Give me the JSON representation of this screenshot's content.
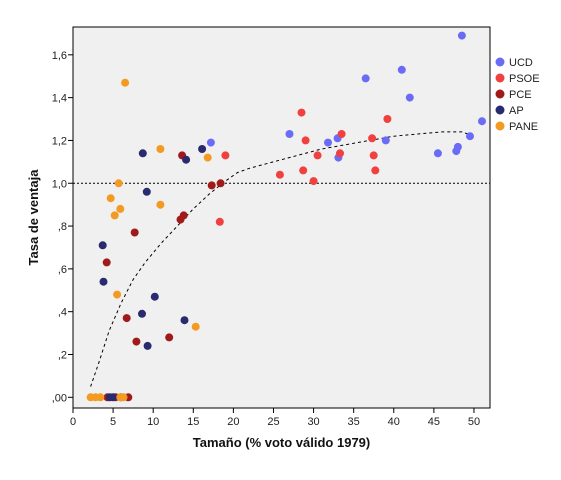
{
  "chart_data": {
    "type": "scatter",
    "xlabel": "Tamaño (% voto válido 1979)",
    "ylabel": "Tasa de ventaja",
    "xlim": [
      0,
      52
    ],
    "ylim": [
      -0.05,
      1.73
    ],
    "x_ticks": [
      0,
      5,
      10,
      15,
      20,
      25,
      30,
      35,
      40,
      45,
      50
    ],
    "x_tick_labels": [
      "0",
      "5",
      "10",
      "15",
      "20",
      "25",
      "30",
      "35",
      "40",
      "45",
      "50"
    ],
    "y_ticks": [
      0,
      0.2,
      0.4,
      0.6,
      0.8,
      1.0,
      1.2,
      1.4,
      1.6
    ],
    "y_tick_labels": [
      ",00",
      ",2",
      ",4",
      ",6",
      ",8",
      "1,0",
      "1,2",
      "1,4",
      "1,6"
    ],
    "grid": false,
    "legend_position": "right",
    "reference_line": {
      "y": 1.0,
      "style": "dotted"
    },
    "trend_line": {
      "style": "dashed",
      "points": [
        [
          2.2,
          0.05
        ],
        [
          3.2,
          0.16
        ],
        [
          4.5,
          0.31
        ],
        [
          6,
          0.44
        ],
        [
          7.5,
          0.55
        ],
        [
          9,
          0.63
        ],
        [
          11,
          0.72
        ],
        [
          13,
          0.8
        ],
        [
          15,
          0.88
        ],
        [
          17,
          0.95
        ],
        [
          19,
          1.01
        ],
        [
          20.5,
          1.05
        ],
        [
          22,
          1.07
        ],
        [
          25,
          1.1
        ],
        [
          28,
          1.13
        ],
        [
          31,
          1.16
        ],
        [
          34,
          1.18
        ],
        [
          37,
          1.2
        ],
        [
          40,
          1.22
        ],
        [
          43,
          1.23
        ],
        [
          46,
          1.24
        ],
        [
          48.5,
          1.24
        ],
        [
          50,
          1.22
        ]
      ]
    },
    "series": [
      {
        "name": "UCD",
        "color": "#6b6cf6",
        "points": [
          [
            48.5,
            1.69
          ],
          [
            51,
            1.29
          ],
          [
            49.5,
            1.22
          ],
          [
            48,
            1.17
          ],
          [
            47.8,
            1.15
          ],
          [
            45.5,
            1.14
          ],
          [
            42,
            1.4
          ],
          [
            41,
            1.53
          ],
          [
            39,
            1.2
          ],
          [
            36.5,
            1.49
          ],
          [
            33,
            1.21
          ],
          [
            33.1,
            1.12
          ],
          [
            31.8,
            1.19
          ],
          [
            27,
            1.23
          ],
          [
            17.2,
            1.19
          ]
        ]
      },
      {
        "name": "PSOE",
        "color": "#f04040",
        "points": [
          [
            39.2,
            1.3
          ],
          [
            37.3,
            1.21
          ],
          [
            37.5,
            1.13
          ],
          [
            37.7,
            1.06
          ],
          [
            33.5,
            1.23
          ],
          [
            33.3,
            1.14
          ],
          [
            30.5,
            1.13
          ],
          [
            30,
            1.01
          ],
          [
            29,
            1.2
          ],
          [
            28.5,
            1.33
          ],
          [
            28.7,
            1.06
          ],
          [
            25.8,
            1.04
          ],
          [
            19,
            1.13
          ],
          [
            18.3,
            0.82
          ]
        ]
      },
      {
        "name": "PCE",
        "color": "#a01a1a",
        "points": [
          [
            18.4,
            1.0
          ],
          [
            17.3,
            0.99
          ],
          [
            13.6,
            1.13
          ],
          [
            13.4,
            0.83
          ],
          [
            13.8,
            0.85
          ],
          [
            12,
            0.28
          ],
          [
            7.7,
            0.77
          ],
          [
            7.9,
            0.26
          ],
          [
            6.7,
            0.37
          ],
          [
            4.2,
            0.63
          ],
          [
            4.3,
            0.0
          ],
          [
            5.3,
            0.0
          ],
          [
            6.9,
            0.0
          ]
        ]
      },
      {
        "name": "AP",
        "color": "#2a2a6e",
        "points": [
          [
            16.1,
            1.16
          ],
          [
            14.1,
            1.11
          ],
          [
            8.7,
            1.14
          ],
          [
            9.2,
            0.96
          ],
          [
            10.2,
            0.47
          ],
          [
            8.6,
            0.39
          ],
          [
            9.3,
            0.24
          ],
          [
            13.9,
            0.36
          ],
          [
            3.7,
            0.71
          ],
          [
            3.8,
            0.54
          ],
          [
            4.6,
            0.0
          ],
          [
            5.0,
            0.0
          ],
          [
            6.0,
            0.0
          ]
        ]
      },
      {
        "name": "PANE",
        "color": "#f39a22",
        "points": [
          [
            6.5,
            1.47
          ],
          [
            10.9,
            1.16
          ],
          [
            16.8,
            1.12
          ],
          [
            5.7,
            1.0
          ],
          [
            4.7,
            0.93
          ],
          [
            5.9,
            0.88
          ],
          [
            5.2,
            0.85
          ],
          [
            10.9,
            0.9
          ],
          [
            5.5,
            0.48
          ],
          [
            15.3,
            0.33
          ],
          [
            2.2,
            0.0
          ],
          [
            2.8,
            0.0
          ],
          [
            3.4,
            0.0
          ],
          [
            5.9,
            0.0
          ],
          [
            6.3,
            0.0
          ]
        ]
      }
    ]
  }
}
